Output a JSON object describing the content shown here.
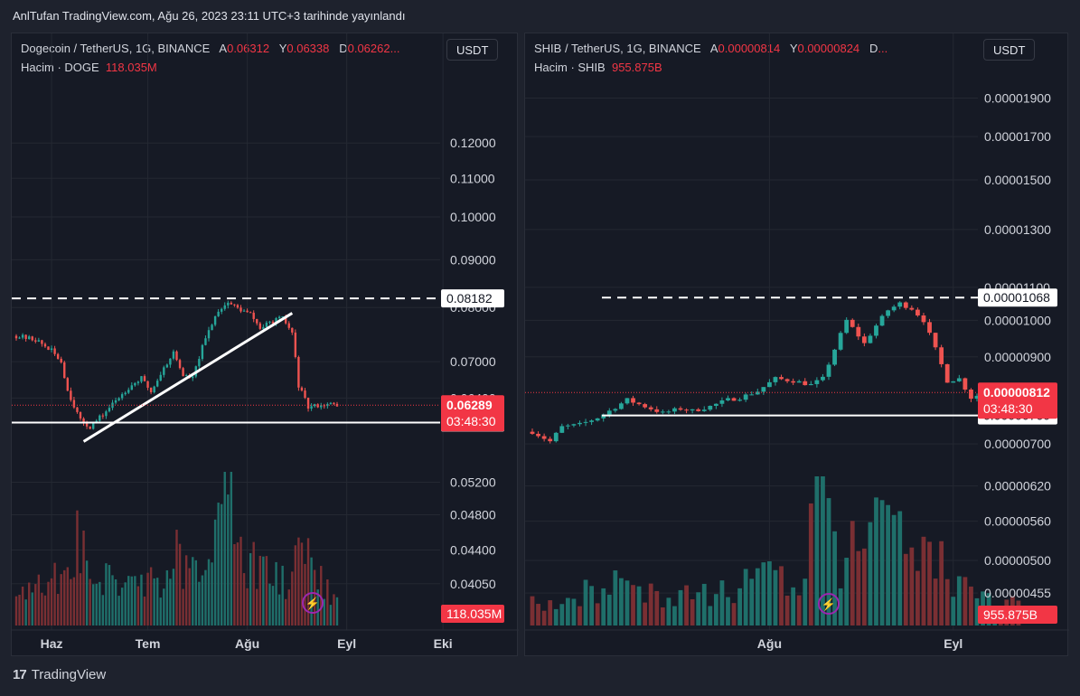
{
  "header": {
    "published": "AnlTufan TradingView.com, Ağu 26, 2023 23:11 UTC+3 tarihinde yayınlandı"
  },
  "footer": {
    "brand": "TradingView"
  },
  "colors": {
    "bg": "#161a25",
    "up": "#26a69a",
    "down": "#ef5350",
    "grid": "#242832",
    "text": "#d1d4dc",
    "badge_red": "#f23645"
  },
  "chart_data": [
    {
      "type": "candlestick",
      "title": "Dogecoin / TetherUS, 1G, BINANCE",
      "ohlc_labels": {
        "A": "0.06312",
        "Y": "0.06338",
        "D": "0.06262..."
      },
      "volume_label": "Hacim · DOGE",
      "volume_value": "118.035M",
      "currency_button": "USDT",
      "y_scale": "log",
      "ylim": [
        0.0388,
        0.1295
      ],
      "y_ticks": [
        "0.12000",
        "0.11000",
        "0.10000",
        "0.09000",
        "0.08000",
        "0.07000",
        "0.06400",
        "0.05200",
        "0.04800",
        "0.04400",
        "0.04050"
      ],
      "x_ticks": [
        "Haz",
        "Tem",
        "Ağu",
        "Eyl",
        "Eki"
      ],
      "x_days": 155,
      "x_tick_days": [
        11,
        41,
        72,
        103,
        133
      ],
      "price_badges": {
        "last": "0.06289",
        "countdown": "03:48:30",
        "resistance": "0.08182",
        "support": "0.06024",
        "volume": "118.035M"
      },
      "horizontal_lines": [
        {
          "price": 0.08182,
          "style": "dashed"
        },
        {
          "price": 0.06024,
          "style": "solid"
        }
      ],
      "trend_line": {
        "from": {
          "day": 21,
          "price": 0.0575
        },
        "to": {
          "day": 86,
          "price": 0.0789
        }
      },
      "last_price": 0.06289,
      "anchors": [
        [
          0,
          0.0746
        ],
        [
          6,
          0.0739
        ],
        [
          11,
          0.0719
        ],
        [
          14,
          0.07
        ],
        [
          16,
          0.0652
        ],
        [
          20,
          0.0605
        ],
        [
          23,
          0.0596
        ],
        [
          27,
          0.0614
        ],
        [
          31,
          0.0636
        ],
        [
          35,
          0.0657
        ],
        [
          39,
          0.0672
        ],
        [
          42,
          0.065
        ],
        [
          46,
          0.0689
        ],
        [
          49,
          0.0716
        ],
        [
          52,
          0.0677
        ],
        [
          55,
          0.0672
        ],
        [
          58,
          0.0725
        ],
        [
          61,
          0.077
        ],
        [
          63,
          0.0795
        ],
        [
          66,
          0.081
        ],
        [
          70,
          0.0795
        ],
        [
          73,
          0.0787
        ],
        [
          76,
          0.076
        ],
        [
          80,
          0.0774
        ],
        [
          83,
          0.0779
        ],
        [
          86,
          0.0751
        ],
        [
          88,
          0.066
        ],
        [
          91,
          0.0625
        ],
        [
          94,
          0.0629
        ],
        [
          98,
          0.063
        ],
        [
          100,
          0.0629
        ]
      ],
      "volume_anchors": [
        [
          0,
          0.2
        ],
        [
          10,
          0.25
        ],
        [
          19,
          0.55
        ],
        [
          24,
          0.3
        ],
        [
          35,
          0.25
        ],
        [
          44,
          0.3
        ],
        [
          50,
          0.45
        ],
        [
          58,
          0.35
        ],
        [
          62,
          0.55
        ],
        [
          66,
          0.95
        ],
        [
          70,
          0.45
        ],
        [
          80,
          0.3
        ],
        [
          86,
          0.25
        ],
        [
          89,
          0.65
        ],
        [
          93,
          0.35
        ],
        [
          100,
          0.2
        ]
      ]
    },
    {
      "type": "candlestick",
      "title": "SHIB / TetherUS, 1G, BINANCE",
      "ohlc_labels": {
        "A": "0.00000814",
        "Y": "0.00000824",
        "D": "..."
      },
      "volume_label": "Hacim · SHIB",
      "volume_value": "955.875B",
      "currency_button": "USDT",
      "y_scale": "log",
      "ylim": [
        4.4e-06,
        2.02e-05
      ],
      "y_ticks": [
        "0.00001900",
        "0.00001700",
        "0.00001500",
        "0.00001300",
        "0.00001100",
        "0.00001000",
        "0.00000900",
        "0.00000700",
        "0.00000620",
        "0.00000560",
        "0.00000500",
        "0.00000455"
      ],
      "x_ticks": [
        "Ağu",
        "Eyl"
      ],
      "x_days": 101,
      "x_tick_days": [
        40,
        71
      ],
      "price_badges": {
        "last": "0.00000812",
        "countdown": "03:48:30",
        "resistance": "0.00001068",
        "support": "0.00000760"
      },
      "horizontal_lines": [
        {
          "price": 1.068e-05,
          "style": "dashed"
        },
        {
          "price": 7.6e-06,
          "style": "solid"
        }
      ],
      "last_price": 8.12e-06,
      "anchors": [
        [
          0,
          7.25e-06
        ],
        [
          3,
          7.05e-06
        ],
        [
          5,
          7.35e-06
        ],
        [
          8,
          7.4e-06
        ],
        [
          11,
          7.55e-06
        ],
        [
          13,
          7.7e-06
        ],
        [
          16,
          7.95e-06
        ],
        [
          19,
          7.8e-06
        ],
        [
          22,
          7.65e-06
        ],
        [
          25,
          7.75e-06
        ],
        [
          27,
          7.7e-06
        ],
        [
          30,
          7.8e-06
        ],
        [
          33,
          7.95e-06
        ],
        [
          35,
          8e-06
        ],
        [
          38,
          8.15e-06
        ],
        [
          41,
          8.45e-06
        ],
        [
          44,
          8.4e-06
        ],
        [
          47,
          8.3e-06
        ],
        [
          49,
          8.45e-06
        ],
        [
          51,
          9.2e-06
        ],
        [
          53,
          1e-05
        ],
        [
          56,
          9.35e-06
        ],
        [
          58,
          9.85e-06
        ],
        [
          60,
          1.03e-05
        ],
        [
          62,
          1.05e-05
        ],
        [
          64,
          1.035e-05
        ],
        [
          66,
          1e-05
        ],
        [
          68,
          9.2e-06
        ],
        [
          70,
          8.4e-06
        ],
        [
          72,
          8.45e-06
        ],
        [
          74,
          8e-06
        ],
        [
          76,
          8.1e-06
        ],
        [
          78,
          8.25e-06
        ],
        [
          80,
          8.15e-06
        ],
        [
          82,
          8.12e-06
        ]
      ],
      "volume_anchors": [
        [
          0,
          0.15
        ],
        [
          8,
          0.2
        ],
        [
          13,
          0.3
        ],
        [
          17,
          0.25
        ],
        [
          24,
          0.2
        ],
        [
          32,
          0.22
        ],
        [
          36,
          0.3
        ],
        [
          40,
          0.35
        ],
        [
          45,
          0.25
        ],
        [
          49,
          1.0
        ],
        [
          52,
          0.45
        ],
        [
          57,
          0.55
        ],
        [
          59,
          0.65
        ],
        [
          62,
          0.55
        ],
        [
          65,
          0.55
        ],
        [
          67,
          0.6
        ],
        [
          70,
          0.35
        ],
        [
          74,
          0.2
        ],
        [
          79,
          0.15
        ],
        [
          82,
          0.15
        ]
      ]
    }
  ]
}
